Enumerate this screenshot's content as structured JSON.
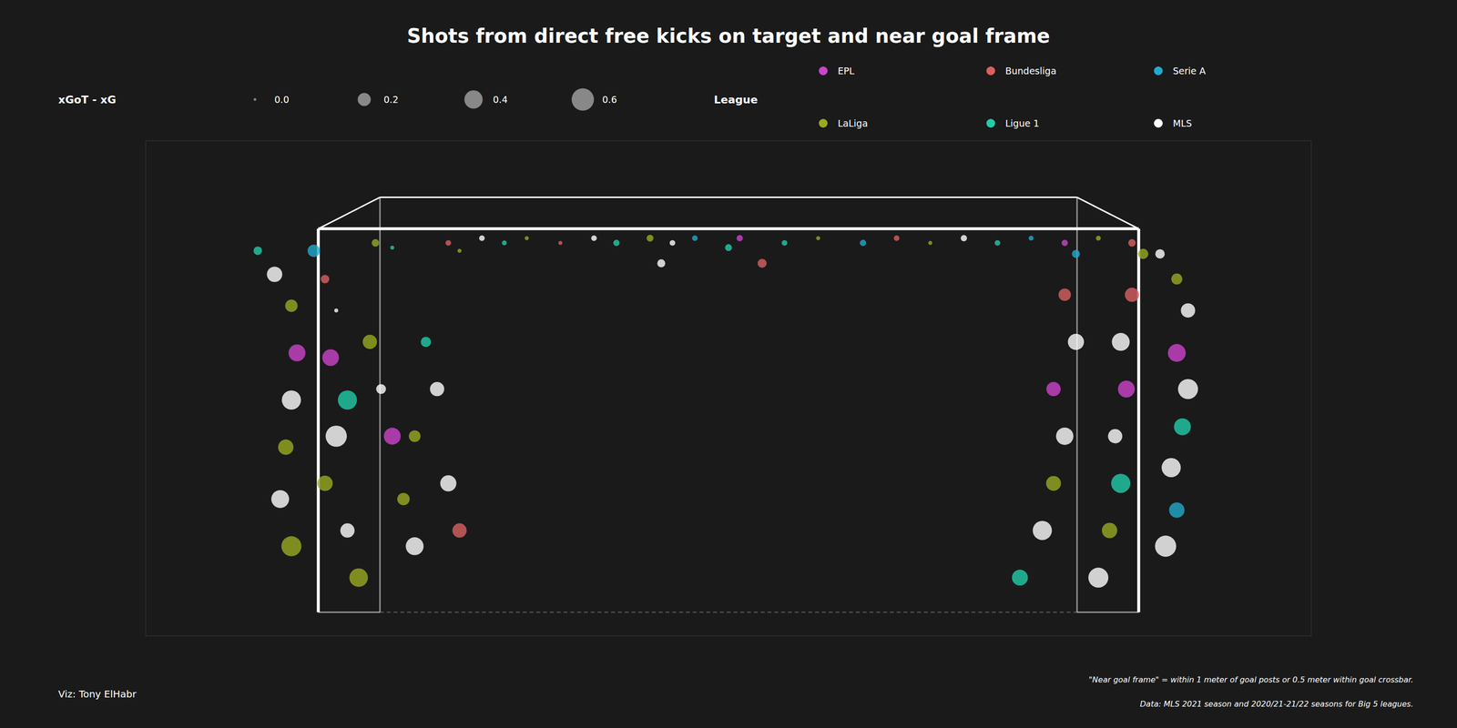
{
  "chart_data": {
    "type": "scatter",
    "title": "Shots from direct free kicks on target and near goal frame",
    "xlim": [
      -5.2,
      5.2
    ],
    "ylim": [
      -0.15,
      3.0
    ],
    "tick_labels": false,
    "legend": "top",
    "legend_title": "League",
    "size_legend_title": "xGoT - xG",
    "size_legend_values": [
      {
        "value": 0,
        "label": "0.0"
      },
      0.2,
      0.4,
      0.6
    ],
    "goal_width": 7.32,
    "goal_height": 2.44,
    "goal_color": "#ffffff",
    "annotations": [
      "Viz: Tony ElHabr",
      "\"Near goal frame\" = within 1 meter of goal posts or 0.5 meter within goal crossbar.",
      "Data: MLS 2021 season and 2020/21-21/22 seasons for Big 5 leagues."
    ],
    "series": [
      {
        "name": "EPL",
        "color": "#cc44cc",
        "x": [
          -3.85,
          -3.55,
          -3.0,
          0.1,
          3.0,
          4.0,
          3.55,
          2.9
        ],
        "values": [
          1.65,
          1.62,
          1.12,
          2.38,
          2.35,
          1.65,
          1.42,
          1.42
        ],
        "sizes": [
          0.34,
          0.33,
          0.34,
          0.04,
          0.04,
          0.38,
          0.34,
          0.24
        ]
      },
      {
        "name": "Bundesliga",
        "color": "#d96060",
        "x": [
          -3.6,
          -2.5,
          -1.5,
          0.3,
          1.5,
          3.6,
          3.6,
          3.0,
          -2.4
        ],
        "values": [
          2.12,
          2.35,
          2.35,
          2.22,
          2.38,
          2.35,
          2.02,
          2.02,
          0.52
        ],
        "sizes": [
          0.08,
          0.03,
          0.01,
          0.09,
          0.03,
          0.06,
          0.24,
          0.18,
          0.24
        ]
      },
      {
        "name": "Serie A",
        "color": "#22aacc",
        "x": [
          -3.7,
          -0.3,
          1.2,
          2.7,
          4.0,
          3.1
        ],
        "values": [
          2.3,
          2.38,
          2.35,
          2.38,
          0.65,
          2.28
        ],
        "sizes": [
          0.18,
          0.03,
          0.04,
          0.02,
          0.28,
          0.07
        ]
      },
      {
        "name": "LaLiga",
        "color": "#99aa22",
        "x": [
          -3.9,
          -3.95,
          -3.9,
          -3.6,
          -3.3,
          -3.15,
          -3.2,
          -2.9,
          -2.4,
          -1.8,
          -0.7,
          0.8,
          1.8,
          3.3,
          4.0,
          3.7,
          3.4,
          2.9,
          -2.8
        ],
        "values": [
          1.95,
          1.05,
          0.42,
          0.82,
          0.22,
          2.35,
          1.72,
          0.72,
          2.3,
          2.38,
          2.38,
          2.38,
          2.35,
          2.38,
          2.12,
          2.28,
          0.52,
          0.82,
          1.12
        ],
        "sizes": [
          0.18,
          0.28,
          0.48,
          0.28,
          0.41,
          0.06,
          0.24,
          0.18,
          0.01,
          0.01,
          0.05,
          0.01,
          0.01,
          0.02,
          0.14,
          0.12,
          0.28,
          0.26,
          0.16
        ]
      },
      {
        "name": "Ligue 1",
        "color": "#22ccaa",
        "x": [
          -4.2,
          -3.4,
          -3.0,
          -2.0,
          -1.0,
          0.5,
          0.0,
          2.4,
          4.05,
          3.5,
          2.6,
          -2.7
        ],
        "values": [
          2.3,
          1.35,
          2.32,
          2.35,
          2.35,
          2.35,
          2.32,
          2.35,
          1.18,
          0.82,
          0.22,
          1.72
        ],
        "sizes": [
          0.08,
          0.44,
          0.01,
          0.02,
          0.04,
          0.03,
          0.05,
          0.03,
          0.34,
          0.44,
          0.3,
          0.12
        ]
      },
      {
        "name": "MLS",
        "color": "#ffffff",
        "x": [
          -4.05,
          -3.9,
          -4.0,
          -3.5,
          -3.5,
          -3.4,
          -3.1,
          -2.8,
          -2.2,
          -1.2,
          -0.5,
          -0.6,
          2.1,
          3.85,
          4.1,
          4.1,
          3.95,
          3.9,
          3.5,
          3.45,
          3.3,
          3.1,
          3.0,
          2.8,
          -2.6,
          -2.5
        ],
        "values": [
          2.15,
          1.35,
          0.72,
          1.92,
          1.12,
          0.52,
          1.42,
          0.42,
          2.38,
          2.38,
          2.35,
          2.22,
          2.38,
          2.28,
          1.92,
          1.42,
          0.92,
          0.42,
          1.72,
          1.12,
          0.22,
          1.72,
          1.12,
          0.52,
          1.42,
          0.82
        ],
        "sizes": [
          0.28,
          0.44,
          0.38,
          0.01,
          0.54,
          0.24,
          0.11,
          0.38,
          0.03,
          0.03,
          0.03,
          0.07,
          0.04,
          0.1,
          0.24,
          0.48,
          0.44,
          0.54,
          0.38,
          0.24,
          0.48,
          0.31,
          0.36,
          0.44,
          0.24,
          0.31
        ]
      }
    ]
  }
}
